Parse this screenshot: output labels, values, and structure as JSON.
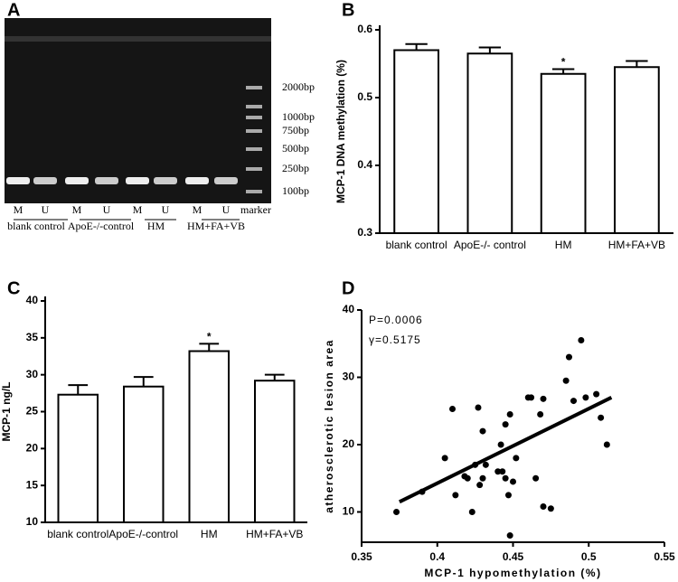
{
  "chart_data": [
    {
      "type": "gel",
      "panel": "A",
      "lanes": [
        "M",
        "U",
        "M",
        "U",
        "M",
        "U",
        "M",
        "U",
        "marker"
      ],
      "groups": [
        "blank control",
        "ApoE-/-control",
        "HM",
        "HM+FA+VB"
      ],
      "sizes": [
        "2000bp",
        "1000bp",
        "750bp",
        "500bp",
        "250bp",
        "100bp"
      ]
    },
    {
      "type": "bar",
      "panel": "B",
      "ylabel": "MCP-1 DNA methylation (%)",
      "categories": [
        "blank control",
        "ApoE-/- control",
        "HM",
        "HM+FA+VB"
      ],
      "values": [
        0.57,
        0.565,
        0.535,
        0.545
      ],
      "errors": [
        0.009,
        0.009,
        0.007,
        0.009
      ],
      "markers": [
        null,
        null,
        "*",
        null
      ],
      "ylim": [
        0.3,
        0.6
      ],
      "yticks": [
        0.3,
        0.4,
        0.5,
        0.6
      ],
      "color": "#ffffff"
    },
    {
      "type": "bar",
      "panel": "C",
      "ylabel": "MCP-1 ng/L",
      "categories": [
        "blank control",
        "ApoE-/-control",
        "HM",
        "HM+FA+VB"
      ],
      "values": [
        27.3,
        28.4,
        33.2,
        29.2
      ],
      "errors": [
        1.3,
        1.3,
        1.0,
        0.8
      ],
      "markers": [
        null,
        null,
        "*",
        null
      ],
      "ylim": [
        10,
        40
      ],
      "yticks": [
        10,
        15,
        20,
        25,
        30,
        35,
        40
      ],
      "color": "#ffffff"
    },
    {
      "type": "scatter",
      "panel": "D",
      "xlabel": "MCP-1 hypomethylation (%)",
      "ylabel": "atherosclerotic lesion area",
      "annotations": [
        "P=0.0006",
        "γ=0.5175"
      ],
      "x": [
        0.373,
        0.39,
        0.405,
        0.41,
        0.412,
        0.418,
        0.42,
        0.423,
        0.425,
        0.427,
        0.428,
        0.43,
        0.43,
        0.432,
        0.44,
        0.442,
        0.443,
        0.445,
        0.445,
        0.447,
        0.448,
        0.448,
        0.45,
        0.452,
        0.46,
        0.462,
        0.465,
        0.468,
        0.47,
        0.47,
        0.475,
        0.485,
        0.487,
        0.49,
        0.495,
        0.498,
        0.505,
        0.508,
        0.512
      ],
      "y": [
        10,
        13,
        18,
        25.3,
        12.5,
        15.3,
        15,
        10,
        17,
        25.5,
        14,
        22,
        15,
        17,
        16,
        20,
        16,
        15,
        23,
        12.5,
        6.5,
        24.5,
        14.5,
        18,
        27,
        27,
        15,
        24.5,
        26.8,
        10.8,
        10.5,
        29.5,
        33,
        26.5,
        35.5,
        27,
        27.5,
        24,
        20
      ],
      "trend_line": {
        "x": [
          0.375,
          0.515
        ],
        "y": [
          11.5,
          27
        ]
      },
      "xlim": [
        0.35,
        0.55
      ],
      "xticks": [
        0.35,
        0.4,
        0.45,
        0.5,
        0.55
      ],
      "ylim": [
        5.5,
        40
      ],
      "yticks": [
        10,
        20,
        30,
        40
      ],
      "color": "#000000"
    }
  ]
}
